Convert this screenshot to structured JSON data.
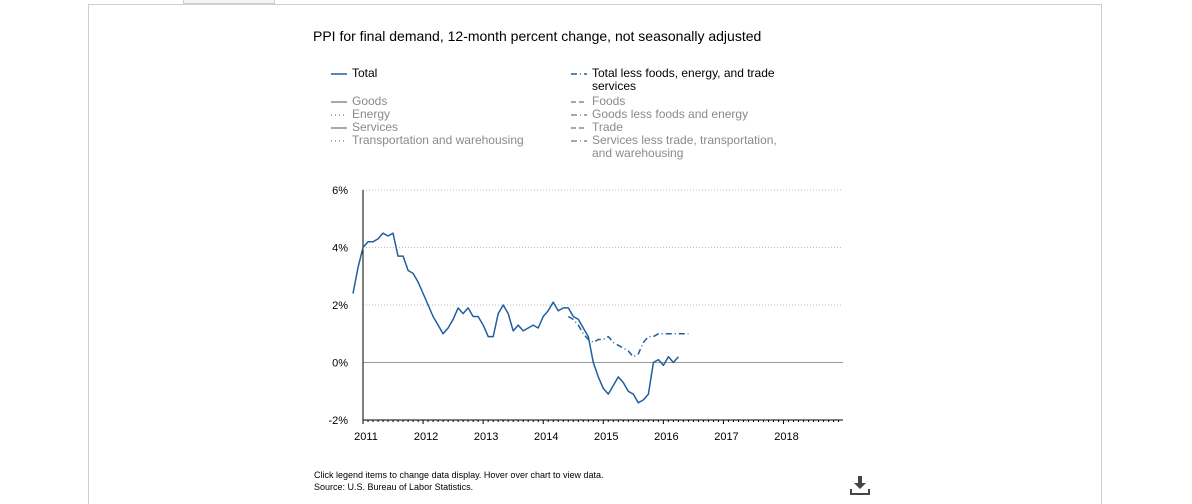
{
  "chart_data": {
    "type": "line",
    "title": "PPI for final demand, 12-month percent change, not seasonally adjusted",
    "xlabel": "",
    "ylabel": "",
    "ylim": [
      -2,
      6
    ],
    "yticks": [
      -2,
      0,
      2,
      4,
      6
    ],
    "ytick_labels": [
      "-2%",
      "0%",
      "2%",
      "4%",
      "6%"
    ],
    "xlim": [
      2011,
      2018.99
    ],
    "xticks": [
      2011,
      2012,
      2013,
      2014,
      2015,
      2016,
      2017,
      2018
    ],
    "xtick_labels": [
      "2011",
      "2012",
      "2013",
      "2014",
      "2015",
      "2016",
      "2017",
      "2018"
    ],
    "grid": "horizontal-dotted",
    "legend_position": "top",
    "legend": [
      {
        "label": "Total",
        "style": "solid",
        "color": "#1f5f9e",
        "active": true
      },
      {
        "label": "Goods",
        "style": "solid",
        "color": "#8a8a8a",
        "active": false
      },
      {
        "label": "Energy",
        "style": "dotted",
        "color": "#8a8a8a",
        "active": false
      },
      {
        "label": "Services",
        "style": "solid",
        "color": "#8a8a8a",
        "active": false
      },
      {
        "label": "Transportation and warehousing",
        "style": "dotted",
        "color": "#8a8a8a",
        "active": false
      },
      {
        "label": "Total less foods, energy, and trade services",
        "style": "dashdot",
        "color": "#1f5f9e",
        "active": true
      },
      {
        "label": "Foods",
        "style": "dashed",
        "color": "#8a8a8a",
        "active": false
      },
      {
        "label": "Goods less foods and energy",
        "style": "dashdot",
        "color": "#8a8a8a",
        "active": false
      },
      {
        "label": "Trade",
        "style": "dashed",
        "color": "#8a8a8a",
        "active": false
      },
      {
        "label": "Services less trade, transportation, and warehousing",
        "style": "dashdot",
        "color": "#8a8a8a",
        "active": false
      }
    ],
    "series": [
      {
        "name": "Total",
        "style": "solid",
        "color": "#1f5f9e",
        "start": "2010-11",
        "values": [
          2.4,
          3.3,
          4.0,
          4.2,
          4.2,
          4.3,
          4.5,
          4.4,
          4.5,
          3.7,
          3.7,
          3.2,
          3.1,
          2.8,
          2.4,
          2.0,
          1.6,
          1.3,
          1.0,
          1.2,
          1.5,
          1.9,
          1.7,
          1.9,
          1.6,
          1.6,
          1.3,
          0.9,
          0.9,
          1.7,
          2.0,
          1.7,
          1.1,
          1.3,
          1.1,
          1.2,
          1.3,
          1.2,
          1.6,
          1.8,
          2.1,
          1.8,
          1.9,
          1.9,
          1.6,
          1.5,
          1.2,
          0.9,
          0.0,
          -0.5,
          -0.9,
          -1.1,
          -0.8,
          -0.5,
          -0.7,
          -1.0,
          -1.1,
          -1.4,
          -1.3,
          -1.1,
          0.0,
          0.1,
          -0.1,
          0.2,
          0.0,
          0.2
        ]
      },
      {
        "name": "Total less foods, energy, and trade services",
        "style": "dashdot",
        "color": "#1f5f9e",
        "start": "2014-06",
        "values": [
          1.6,
          1.5,
          1.3,
          1.0,
          0.8,
          0.7,
          0.8,
          0.8,
          0.9,
          0.7,
          0.6,
          0.5,
          0.4,
          0.2,
          0.3,
          0.7,
          0.9,
          0.9,
          1.0,
          1.0,
          1.0,
          1.0,
          1.0,
          1.0,
          1.0
        ]
      }
    ]
  },
  "footer": {
    "line1": "Click legend items to change data display. Hover over chart to view data.",
    "line2": "Source: U.S. Bureau of Labor Statistics."
  },
  "icons": {
    "download": "download-icon"
  }
}
